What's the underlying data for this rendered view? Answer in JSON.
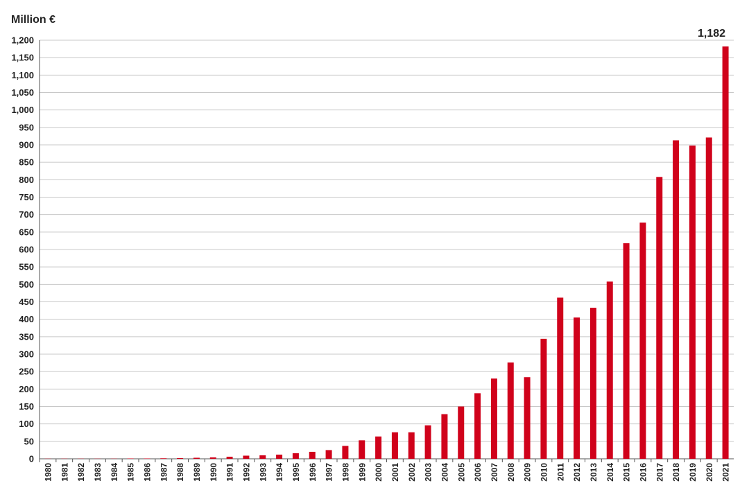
{
  "chart_data": {
    "type": "bar",
    "ylabel": "Million €",
    "xlabel": "",
    "ylim": [
      0,
      1200
    ],
    "yticks": [
      "0",
      "50",
      "100",
      "150",
      "200",
      "250",
      "300",
      "350",
      "400",
      "450",
      "500",
      "550",
      "600",
      "650",
      "700",
      "750",
      "800",
      "850",
      "900",
      "950",
      "1,000",
      "1,050",
      "1,100",
      "1,150",
      "1,200"
    ],
    "grid": true,
    "bar_color": "#d0021b",
    "categories": [
      "1980",
      "1981",
      "1982",
      "1983",
      "1984",
      "1985",
      "1986",
      "1987",
      "1988",
      "1989",
      "1990",
      "1991",
      "1992",
      "1993",
      "1994",
      "1995",
      "1996",
      "1997",
      "1998",
      "1999",
      "2000",
      "2001",
      "2002",
      "2003",
      "2004",
      "2005",
      "2006",
      "2007",
      "2008",
      "2009",
      "2010",
      "2011",
      "2012",
      "2013",
      "2014",
      "2015",
      "2016",
      "2017",
      "2018",
      "2019",
      "2020",
      "2021"
    ],
    "values": [
      0.5,
      0.5,
      0.5,
      0.5,
      0.5,
      1,
      1,
      1.5,
      2,
      3,
      4,
      6,
      9,
      10,
      12,
      16,
      20,
      25,
      37,
      53,
      64,
      76,
      76,
      96,
      128,
      150,
      188,
      230,
      276,
      234,
      344,
      462,
      405,
      433,
      508,
      618,
      677,
      808,
      913,
      898,
      921,
      1182
    ],
    "annotations": [
      {
        "category": "2021",
        "text": "1,182"
      }
    ]
  }
}
